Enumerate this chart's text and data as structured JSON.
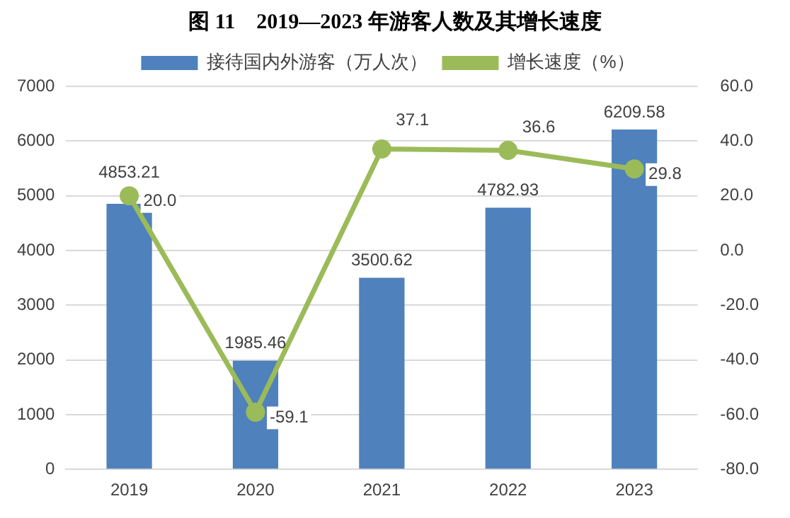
{
  "chart_data": {
    "type": "bar",
    "title": "图 11　2019—2023 年游客人数及其增长速度",
    "categories": [
      "2019",
      "2020",
      "2021",
      "2022",
      "2023"
    ],
    "series": [
      {
        "name": "接待国内外游客（万人次）",
        "color": "#4f81bd",
        "values": [
          4853.21,
          1985.46,
          3500.62,
          4782.93,
          6209.58
        ],
        "value_labels": [
          "4853.21",
          "1985.46",
          "3500.62",
          "4782.93",
          "6209.58"
        ]
      },
      {
        "name": "增长速度（%）",
        "type": "line",
        "axis": "y2",
        "color": "#9bbb59",
        "marker": "circle",
        "values": [
          20.0,
          -59.1,
          37.1,
          36.6,
          29.8
        ],
        "value_labels": [
          "20.0",
          "-59.1",
          "37.1",
          "36.6",
          "29.8"
        ]
      }
    ],
    "ylim": [
      0,
      7000
    ],
    "yticks": [
      0,
      1000,
      2000,
      3000,
      4000,
      5000,
      6000,
      7000
    ],
    "y2lim": [
      -80,
      60
    ],
    "y2ticks": [
      {
        "value": -80,
        "label": "-80.0"
      },
      {
        "value": -60,
        "label": "-60.0"
      },
      {
        "value": -40,
        "label": "-40.0"
      },
      {
        "value": -20,
        "label": "-20.0"
      },
      {
        "value": 0,
        "label": "0.0"
      },
      {
        "value": 20,
        "label": "20.0"
      },
      {
        "value": 40,
        "label": "40.0"
      },
      {
        "value": 60,
        "label": "60.0"
      }
    ],
    "grid": "y",
    "legend": "top"
  }
}
